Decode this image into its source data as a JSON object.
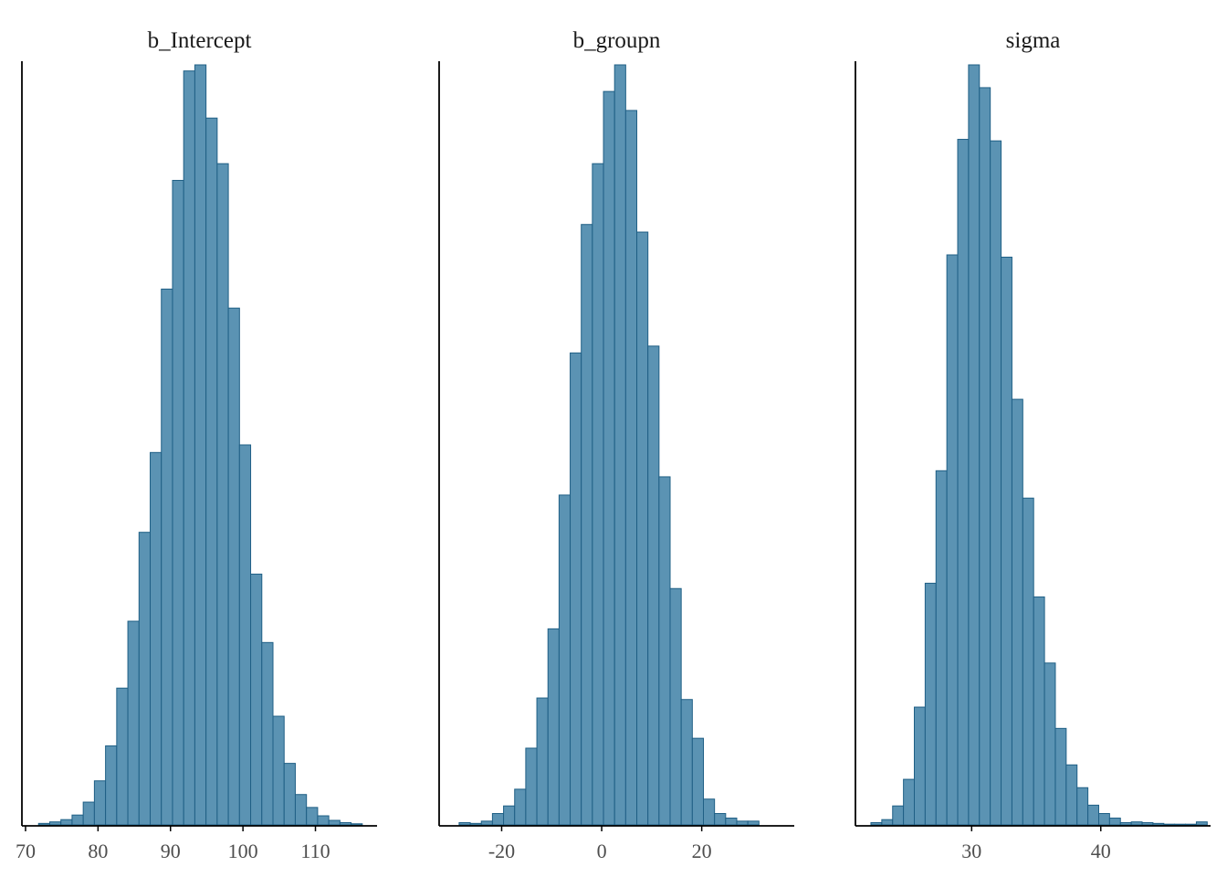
{
  "colors": {
    "fill": "#5b93b3",
    "stroke": "#1f5f85"
  },
  "chart_data": [
    {
      "type": "bar",
      "title": "b_Intercept",
      "xlim": [
        69.5,
        118.5
      ],
      "ticks": [
        70,
        80,
        90,
        100,
        110
      ],
      "tick_labels": [
        "70",
        "80",
        "90",
        "100",
        "110"
      ],
      "bin_start": 71.8,
      "bin_width": 1.54,
      "counts": [
        0.002,
        0.004,
        0.007,
        0.013,
        0.03,
        0.058,
        0.104,
        0.18,
        0.268,
        0.385,
        0.49,
        0.705,
        0.848,
        0.992,
        1.0,
        0.93,
        0.87,
        0.68,
        0.5,
        0.33,
        0.24,
        0.143,
        0.081,
        0.04,
        0.023,
        0.012,
        0.006,
        0.003,
        0.0015
      ]
    },
    {
      "type": "bar",
      "title": "b_groupn",
      "xlim": [
        -32.5,
        38.5
      ],
      "ticks": [
        -20,
        0,
        20
      ],
      "tick_labels": [
        "-20",
        "0",
        "20"
      ],
      "bin_start": -28.5,
      "bin_width": 2.22,
      "counts": [
        0.003,
        0.002,
        0.005,
        0.015,
        0.025,
        0.047,
        0.101,
        0.167,
        0.258,
        0.434,
        0.621,
        0.79,
        0.87,
        0.965,
        1.0,
        0.94,
        0.78,
        0.63,
        0.458,
        0.311,
        0.165,
        0.114,
        0.034,
        0.015,
        0.009,
        0.005,
        0.005
      ]
    },
    {
      "type": "bar",
      "title": "sigma",
      "xlim": [
        21.0,
        48.5
      ],
      "ticks": [
        30,
        40
      ],
      "tick_labels": [
        "30",
        "40"
      ],
      "bin_start": 22.2,
      "bin_width": 0.84,
      "counts": [
        0.003,
        0.007,
        0.025,
        0.06,
        0.155,
        0.318,
        0.466,
        0.75,
        0.902,
        1.0,
        0.97,
        0.9,
        0.747,
        0.56,
        0.43,
        0.3,
        0.213,
        0.127,
        0.079,
        0.049,
        0.026,
        0.015,
        0.009,
        0.003,
        0.004,
        0.003,
        0.002,
        0.001,
        0.0,
        0.0,
        0.004
      ]
    }
  ]
}
